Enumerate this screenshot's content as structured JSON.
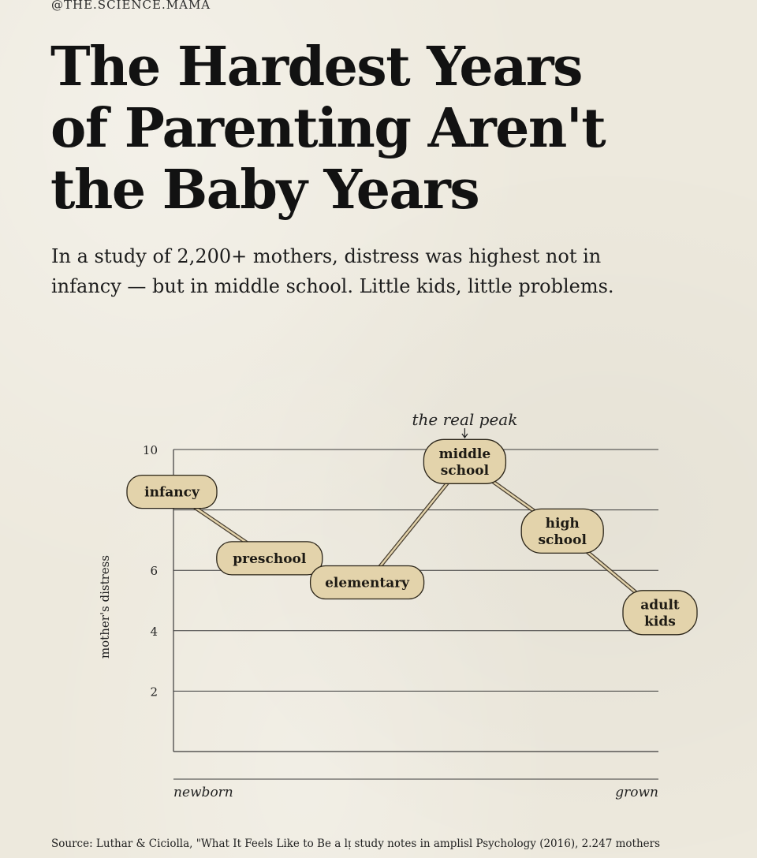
{
  "handle": "@THE.SCIENCE.MAMA",
  "title_lines": [
    "The Hardest Years",
    "of Parenting Aren't",
    "the Baby Years"
  ],
  "subtitle_lines": [
    "In a study of 2,200+ mothers, distress was highest not in",
    "infancy — but in middle school. Little kids, little problems."
  ],
  "colors": {
    "node_fill": "#e3d3ab",
    "node_stroke": "#2a2418",
    "connector": "#4a4032",
    "grid": "#3a3a3a"
  },
  "chart_data": {
    "type": "line",
    "ylabel": "mother's distress",
    "y_ticks": [
      2,
      4,
      6,
      10
    ],
    "ylim": [
      0,
      10
    ],
    "x_start_label": "newborn",
    "x_end_label": "grown",
    "grid": true,
    "annotation": "the real peak",
    "annotation_target": 3,
    "points": [
      {
        "label": [
          "infancy"
        ],
        "value": 8.6
      },
      {
        "label": [
          "preschool"
        ],
        "value": 6.4
      },
      {
        "label": [
          "elementary"
        ],
        "value": 5.6
      },
      {
        "label": [
          "middle",
          "school"
        ],
        "value": 9.6
      },
      {
        "label": [
          "high",
          "school"
        ],
        "value": 7.3
      },
      {
        "label": [
          "adult",
          "kids"
        ],
        "value": 4.6
      }
    ]
  },
  "source": "Source: Luthar & Ciciolla, \"What It Feels Like to Be a lᴉ study notes in amplisl Psychology (2016), 2.247 mothers"
}
